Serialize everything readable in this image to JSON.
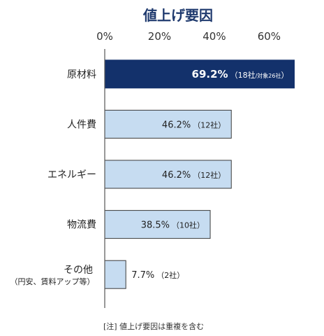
{
  "chart_data": {
    "type": "bar",
    "orientation": "horizontal",
    "title": "値上げ要因",
    "categories": [
      {
        "label": "原材料",
        "sublabel": ""
      },
      {
        "label": "人件費",
        "sublabel": ""
      },
      {
        "label": "エネルギー",
        "sublabel": ""
      },
      {
        "label": "物流費",
        "sublabel": ""
      },
      {
        "label": "その他",
        "sublabel": "（円安、賃料アップ等）"
      }
    ],
    "values": [
      69.2,
      46.2,
      46.2,
      38.5,
      7.7
    ],
    "data_labels": [
      {
        "value_text": "69.2%",
        "note_text": "（18社",
        "note_small": "/対象26社",
        "note_end": "）"
      },
      {
        "value_text": "46.2%",
        "note_text": "（12社）",
        "note_small": "",
        "note_end": ""
      },
      {
        "value_text": "46.2%",
        "note_text": "（12社）",
        "note_small": "",
        "note_end": ""
      },
      {
        "value_text": "38.5%",
        "note_text": "（10社）",
        "note_small": "",
        "note_end": ""
      },
      {
        "value_text": "7.7%",
        "note_text": "（2社）",
        "note_small": "",
        "note_end": ""
      }
    ],
    "highlight_index": 0,
    "xlim": [
      0,
      65
    ],
    "x_ticks": [
      0,
      20,
      40,
      60
    ],
    "x_tick_labels": [
      "0%",
      "20%",
      "40%",
      "60%"
    ],
    "x_axis_position": "top",
    "grid": false,
    "legend": "none",
    "footnote": "[注] 値上げ要因は重複を含む",
    "colors": {
      "title": "#1f3a6e",
      "highlight_fill": "#13316b",
      "bar_fill": "#c6dcf1",
      "bar_stroke": "#3a3a3a",
      "highlight_label": "#ffffff",
      "label": "#222222",
      "axis": "#555555"
    }
  }
}
